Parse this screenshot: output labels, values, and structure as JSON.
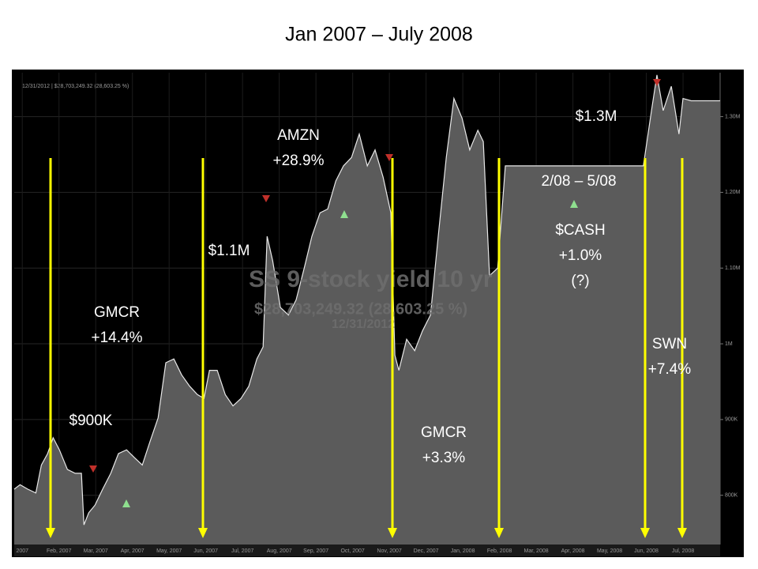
{
  "title": "Jan 2007 – July 2008",
  "chart_data": {
    "type": "area",
    "header_text": "12/31/2012 | $28,703,249.32 (28,603.25 %)",
    "watermark": [
      "SS 9-stock yield 10 yr",
      "$28,703,249.32 (28,603.25 %)",
      "12/31/2012"
    ],
    "x": [
      -0.22,
      -0.06,
      0.15,
      0.37,
      0.52,
      0.69,
      0.84,
      1.01,
      1.23,
      1.44,
      1.61,
      1.68,
      1.81,
      1.98,
      2.19,
      2.41,
      2.62,
      2.84,
      3.05,
      3.27,
      3.48,
      3.7,
      3.91,
      4.13,
      4.34,
      4.56,
      4.77,
      4.95,
      5.1,
      5.31,
      5.53,
      5.74,
      5.96,
      6.17,
      6.39,
      6.56,
      6.67,
      6.82,
      7.03,
      7.25,
      7.46,
      7.68,
      7.89,
      8.11,
      8.32,
      8.54,
      8.75,
      8.97,
      9.18,
      9.4,
      9.61,
      9.83,
      10.04,
      10.15,
      10.26,
      10.47,
      10.69,
      10.9,
      11.12,
      11.33,
      11.55,
      11.76,
      11.98,
      12.19,
      12.41,
      12.56,
      12.73,
      12.95,
      13.16,
      14.45,
      15.74,
      16.92,
      17.14,
      17.29,
      17.46,
      17.68,
      17.89,
      18.0,
      18.22,
      19.01
    ],
    "series": [
      {
        "color": "#e8e8e8",
        "fill": "#5b5b5b",
        "values": [
          808000,
          814000,
          808000,
          803000,
          840000,
          855000,
          876000,
          860000,
          834000,
          829000,
          829000,
          761000,
          777000,
          787000,
          808000,
          829000,
          855000,
          860000,
          850000,
          840000,
          871000,
          902000,
          975000,
          980000,
          959000,
          944000,
          933000,
          928000,
          965000,
          965000,
          933000,
          918000,
          928000,
          944000,
          980000,
          996000,
          1142000,
          1110000,
          1048000,
          1038000,
          1058000,
          1100000,
          1142000,
          1173000,
          1178000,
          1215000,
          1235000,
          1246000,
          1277000,
          1235000,
          1256000,
          1220000,
          1173000,
          985000,
          965000,
          1006000,
          991000,
          1017000,
          1038000,
          1142000,
          1246000,
          1324000,
          1298000,
          1256000,
          1282000,
          1267000,
          1090000,
          1100000,
          1235000,
          1235000,
          1235000,
          1235000,
          1308000,
          1355000,
          1308000,
          1340000,
          1277000,
          1324000,
          1321000,
          1321000
        ]
      }
    ],
    "xlim": [
      -0.22,
      19.01
    ],
    "ylim": [
      735000,
      1358000
    ],
    "xticks": [
      {
        "value": 0,
        "label": "2007"
      },
      {
        "value": 1,
        "label": "Feb, 2007"
      },
      {
        "value": 2,
        "label": "Mar, 2007"
      },
      {
        "value": 3,
        "label": "Apr, 2007"
      },
      {
        "value": 4,
        "label": "May, 2007"
      },
      {
        "value": 5,
        "label": "Jun, 2007"
      },
      {
        "value": 6,
        "label": "Jul, 2007"
      },
      {
        "value": 7,
        "label": "Aug, 2007"
      },
      {
        "value": 8,
        "label": "Sep, 2007"
      },
      {
        "value": 9,
        "label": "Oct, 2007"
      },
      {
        "value": 10,
        "label": "Nov, 2007"
      },
      {
        "value": 11,
        "label": "Dec, 2007"
      },
      {
        "value": 12,
        "label": "Jan, 2008"
      },
      {
        "value": 13,
        "label": "Feb, 2008"
      },
      {
        "value": 14,
        "label": "Mar, 2008"
      },
      {
        "value": 15,
        "label": "Apr, 2008"
      },
      {
        "value": 16,
        "label": "May, 2008"
      },
      {
        "value": 17,
        "label": "Jun, 2008"
      },
      {
        "value": 18,
        "label": "Jul, 2008"
      }
    ],
    "yticks": [
      {
        "value": 800000,
        "label": "800K"
      },
      {
        "value": 900000,
        "label": "900K"
      },
      {
        "value": 1000000,
        "label": "1M"
      },
      {
        "value": 1100000,
        "label": "1.10M"
      },
      {
        "value": 1200000,
        "label": "1.20M"
      },
      {
        "value": 1300000,
        "label": "1.30M"
      }
    ],
    "grid": true,
    "annotations": [
      [
        "$900K"
      ],
      [
        "GMCR",
        "+14.4%"
      ],
      [
        "$1.1M"
      ],
      [
        "AMZN",
        "+28.9%"
      ],
      [
        "GMCR",
        "+3.3%"
      ],
      [
        "2/08 – 5/08"
      ],
      [
        "$CASH",
        "+1.0%",
        "(?)"
      ],
      [
        "$1.3M"
      ],
      [
        "SWN",
        "+7.4%"
      ]
    ]
  }
}
